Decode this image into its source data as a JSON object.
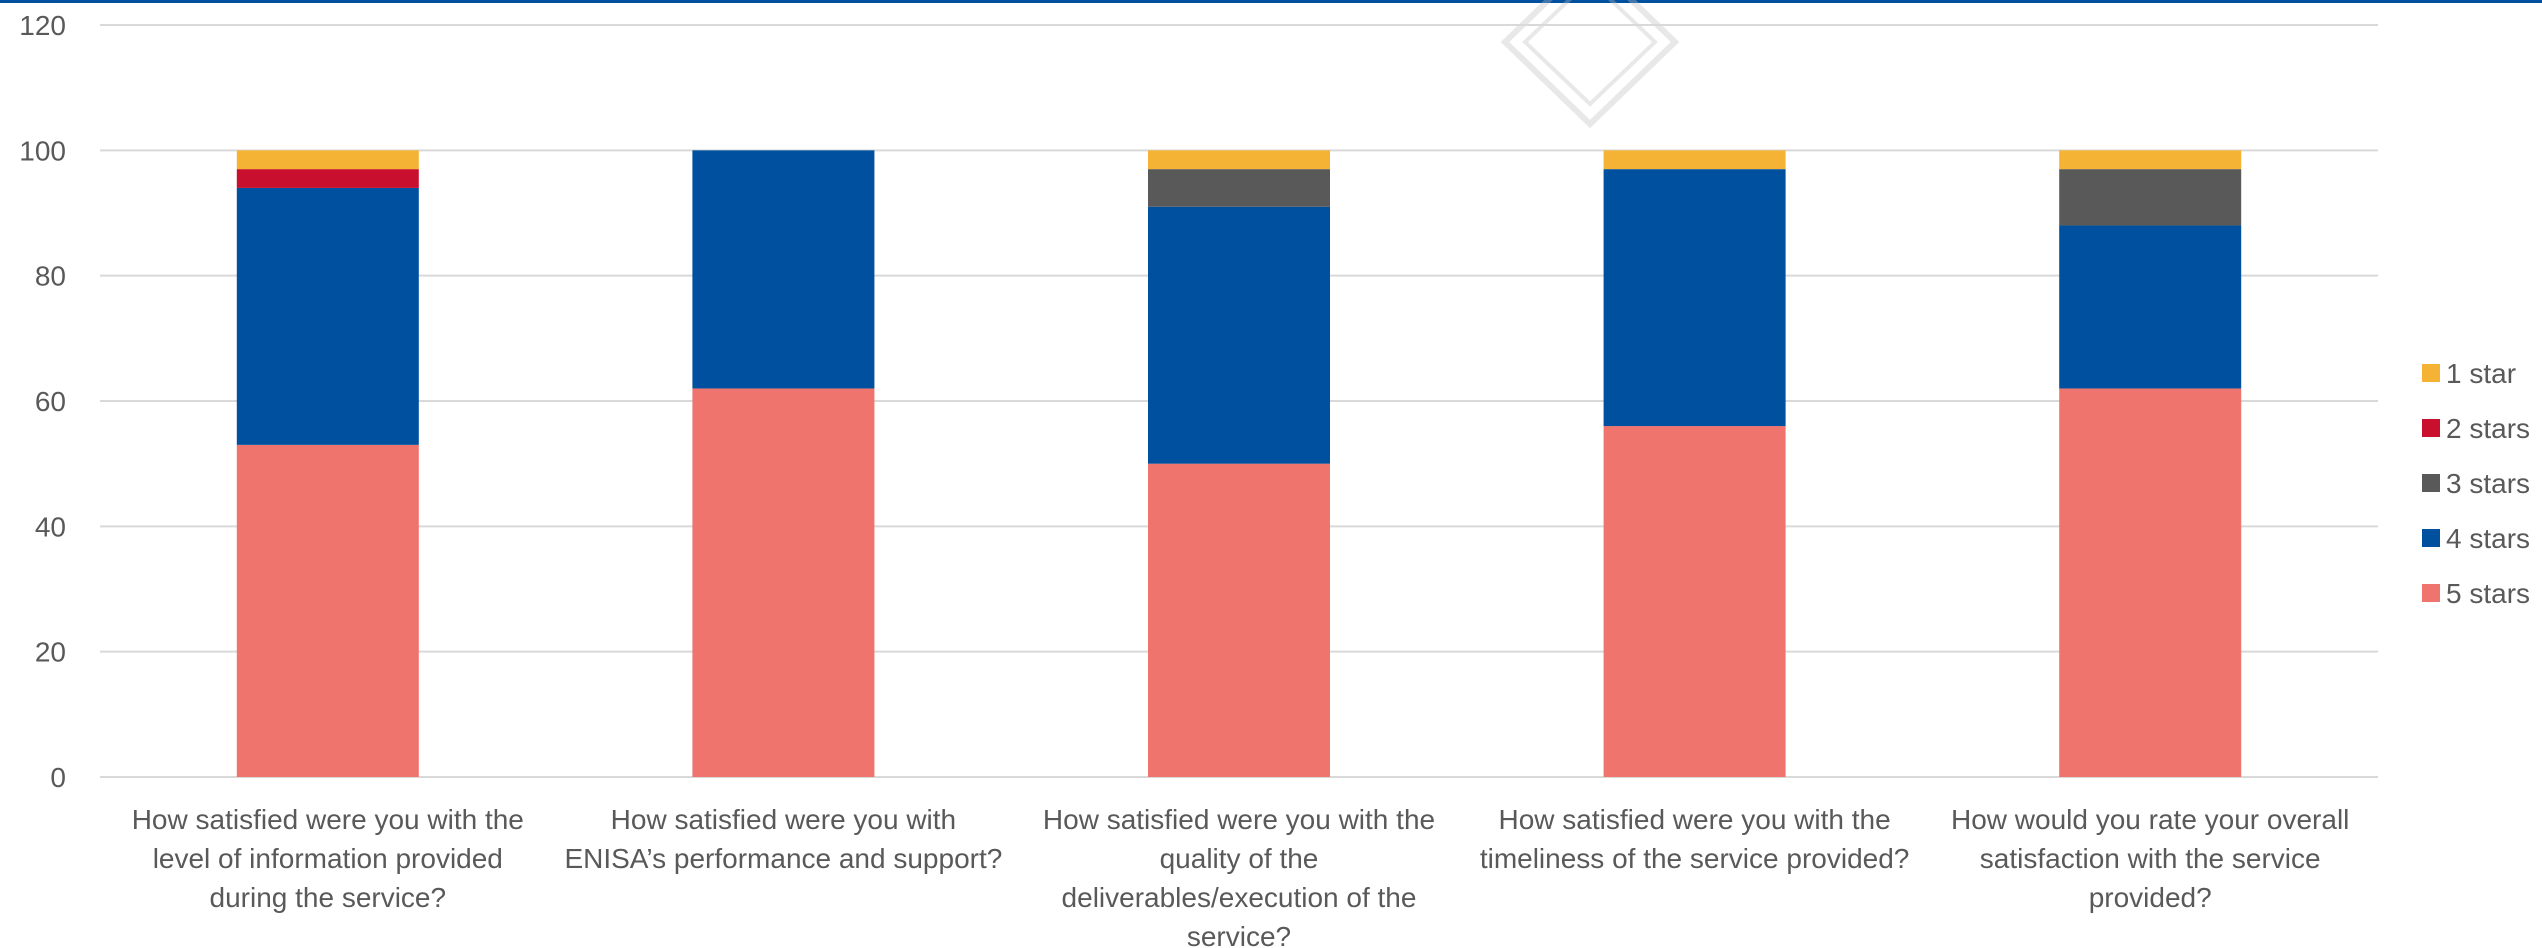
{
  "colors": {
    "1 star": "#f5b335",
    "2 stars": "#c8102e",
    "3 stars": "#595959",
    "4 stars": "#0050a0",
    "5 stars": "#ee746d",
    "grid": "#d9d9d9",
    "text": "#595959"
  },
  "chart_data": {
    "type": "bar",
    "stacked": true,
    "title": "",
    "xlabel": "",
    "ylabel": "",
    "ylim": [
      0,
      120
    ],
    "yticks": [
      0,
      20,
      40,
      60,
      80,
      100,
      120
    ],
    "grid": true,
    "legend_position": "right",
    "categories": [
      "How satisfied were you with the level of information provided during the service?",
      "How satisfied were you with ENISA’s performance and support?",
      "How satisfied were you with the quality of the deliverables/execution of the service?",
      "How satisfied were you with the timeliness of the service provided?",
      "How would you rate your overall satisfaction with the service provided?"
    ],
    "category_lines": [
      [
        "How satisfied were you with the",
        "level of information provided",
        "during the service?"
      ],
      [
        "How satisfied were you with",
        "ENISA’s performance and support?"
      ],
      [
        "How satisfied were you with the",
        "quality of the",
        "deliverables/execution of the",
        "service?"
      ],
      [
        "How satisfied were you with the",
        "timeliness of the service provided?"
      ],
      [
        "How would you rate your overall",
        "satisfaction with the service",
        "provided?"
      ]
    ],
    "series": [
      {
        "name": "5 stars",
        "values": [
          53,
          62,
          50,
          56,
          62
        ]
      },
      {
        "name": "4 stars",
        "values": [
          41,
          38,
          41,
          41,
          26
        ]
      },
      {
        "name": "3 stars",
        "values": [
          0,
          0,
          6,
          0,
          9
        ]
      },
      {
        "name": "2 stars",
        "values": [
          3,
          0,
          0,
          0,
          0
        ]
      },
      {
        "name": "1 star",
        "values": [
          3,
          0,
          3,
          3,
          3
        ]
      }
    ],
    "legend_order": [
      "1 star",
      "2 stars",
      "3 stars",
      "4 stars",
      "5 stars"
    ]
  }
}
